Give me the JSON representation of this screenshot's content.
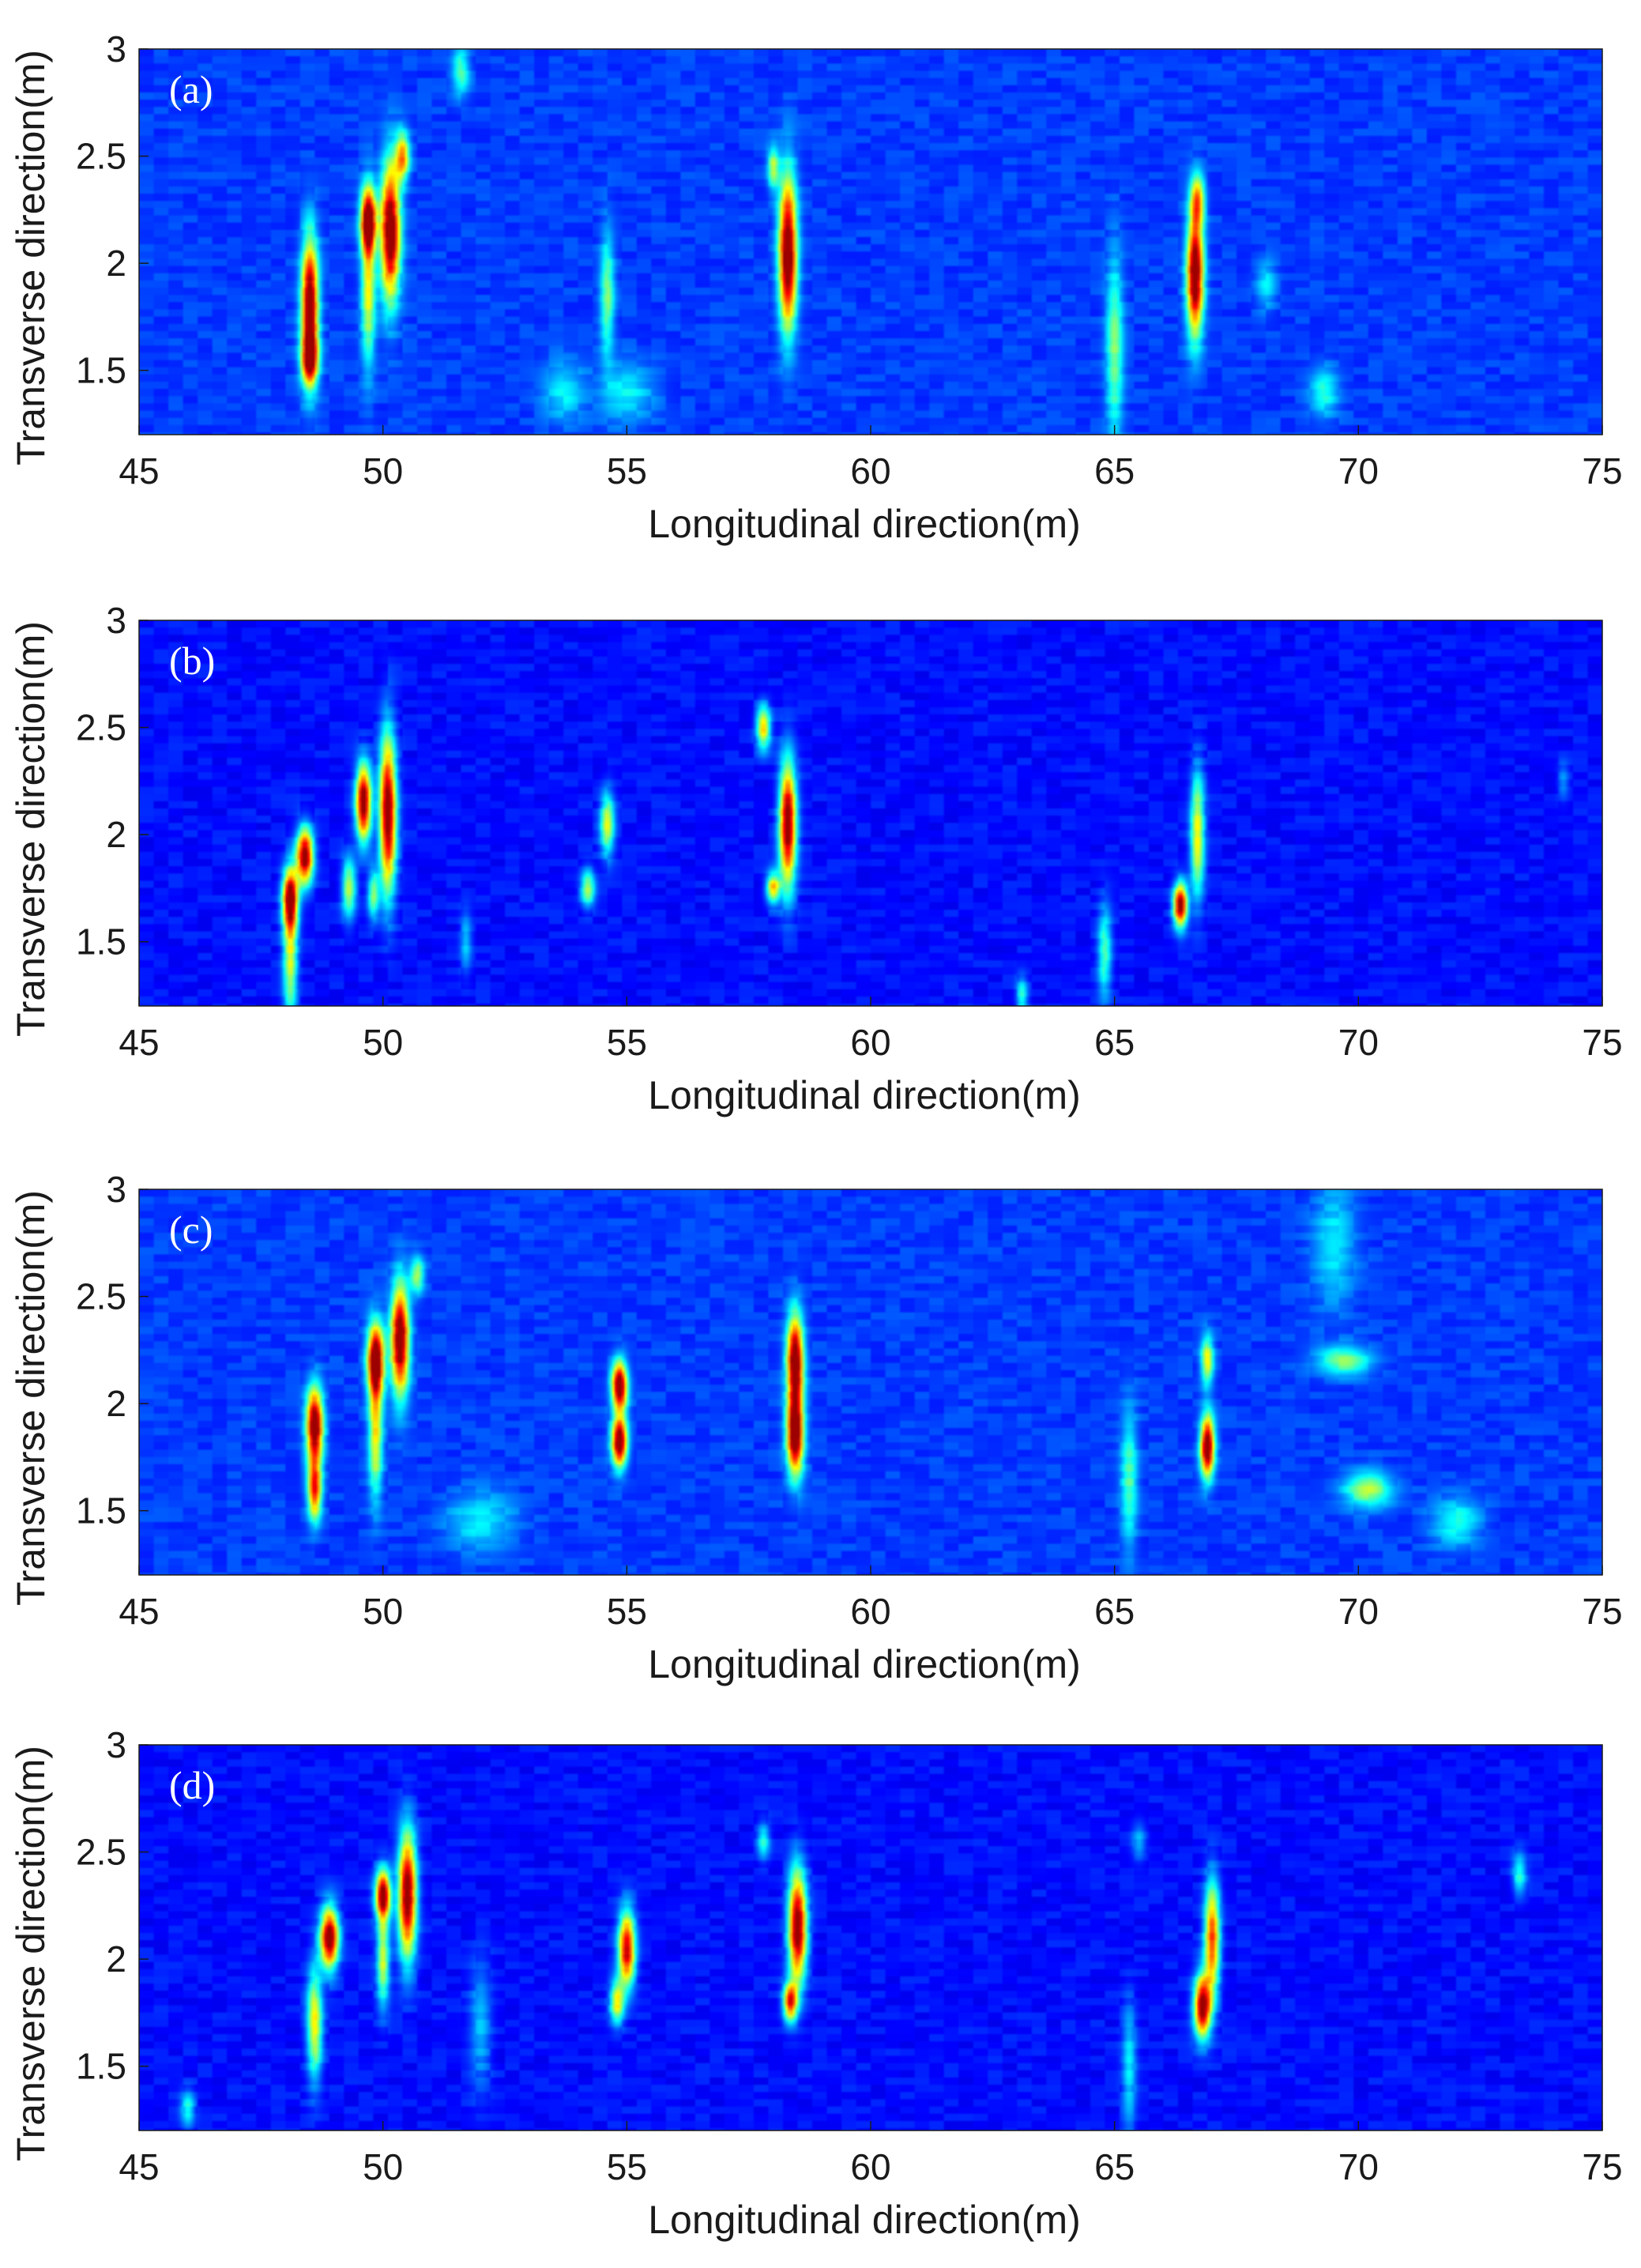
{
  "chart_data": [
    {
      "type": "heatmap",
      "label": "(a)",
      "xlabel": "Longitudinal direction(m)",
      "ylabel": "Transverse direction(m)",
      "xlim": [
        45,
        75
      ],
      "ylim": [
        1.2,
        3
      ],
      "xticks": [
        45,
        50,
        55,
        60,
        65,
        70,
        75
      ],
      "yticks": [
        1.5,
        2,
        2.5,
        3
      ],
      "colormap": "jet",
      "background_level": 0.1,
      "hotspots": [
        {
          "x": 48.5,
          "y": 1.8,
          "sx": 0.12,
          "sy": 0.22,
          "v": 1.0
        },
        {
          "x": 48.5,
          "y": 1.55,
          "sx": 0.12,
          "sy": 0.08,
          "v": 0.6
        },
        {
          "x": 49.7,
          "y": 2.2,
          "sx": 0.11,
          "sy": 0.1,
          "v": 0.95
        },
        {
          "x": 49.7,
          "y": 1.9,
          "sx": 0.1,
          "sy": 0.25,
          "v": 0.5
        },
        {
          "x": 50.15,
          "y": 2.15,
          "sx": 0.14,
          "sy": 0.22,
          "v": 1.0
        },
        {
          "x": 50.4,
          "y": 2.5,
          "sx": 0.1,
          "sy": 0.08,
          "v": 0.6
        },
        {
          "x": 54.6,
          "y": 1.85,
          "sx": 0.1,
          "sy": 0.2,
          "v": 0.35
        },
        {
          "x": 58.3,
          "y": 2.05,
          "sx": 0.13,
          "sy": 0.25,
          "v": 1.0
        },
        {
          "x": 58.0,
          "y": 2.45,
          "sx": 0.08,
          "sy": 0.07,
          "v": 0.4
        },
        {
          "x": 65.0,
          "y": 1.6,
          "sx": 0.12,
          "sy": 0.3,
          "v": 0.35
        },
        {
          "x": 66.65,
          "y": 1.95,
          "sx": 0.12,
          "sy": 0.2,
          "v": 1.0
        },
        {
          "x": 66.7,
          "y": 2.3,
          "sx": 0.1,
          "sy": 0.08,
          "v": 0.5
        },
        {
          "x": 69.3,
          "y": 1.4,
          "sx": 0.2,
          "sy": 0.08,
          "v": 0.25
        },
        {
          "x": 68.1,
          "y": 1.9,
          "sx": 0.15,
          "sy": 0.08,
          "v": 0.2
        },
        {
          "x": 53.7,
          "y": 1.4,
          "sx": 0.3,
          "sy": 0.1,
          "v": 0.2
        },
        {
          "x": 55.0,
          "y": 1.4,
          "sx": 0.4,
          "sy": 0.1,
          "v": 0.2
        },
        {
          "x": 51.6,
          "y": 2.9,
          "sx": 0.12,
          "sy": 0.08,
          "v": 0.3
        }
      ]
    },
    {
      "type": "heatmap",
      "label": "(b)",
      "xlabel": "Longitudinal direction(m)",
      "ylabel": "Transverse direction(m)",
      "xlim": [
        45,
        75
      ],
      "ylim": [
        1.2,
        3
      ],
      "xticks": [
        45,
        50,
        55,
        60,
        65,
        70,
        75
      ],
      "yticks": [
        1.5,
        2,
        2.5,
        3
      ],
      "colormap": "jet",
      "background_level": 0.05,
      "hotspots": [
        {
          "x": 48.1,
          "y": 1.7,
          "sx": 0.11,
          "sy": 0.1,
          "v": 1.0
        },
        {
          "x": 48.1,
          "y": 1.4,
          "sx": 0.1,
          "sy": 0.18,
          "v": 0.5
        },
        {
          "x": 48.4,
          "y": 1.9,
          "sx": 0.12,
          "sy": 0.09,
          "v": 1.0
        },
        {
          "x": 49.6,
          "y": 2.15,
          "sx": 0.11,
          "sy": 0.12,
          "v": 1.0
        },
        {
          "x": 49.3,
          "y": 1.75,
          "sx": 0.1,
          "sy": 0.1,
          "v": 0.45
        },
        {
          "x": 49.8,
          "y": 1.72,
          "sx": 0.08,
          "sy": 0.08,
          "v": 0.4
        },
        {
          "x": 50.1,
          "y": 2.1,
          "sx": 0.12,
          "sy": 0.25,
          "v": 1.0
        },
        {
          "x": 54.6,
          "y": 2.05,
          "sx": 0.1,
          "sy": 0.1,
          "v": 0.5
        },
        {
          "x": 54.2,
          "y": 1.75,
          "sx": 0.1,
          "sy": 0.06,
          "v": 0.45
        },
        {
          "x": 57.8,
          "y": 2.5,
          "sx": 0.1,
          "sy": 0.07,
          "v": 0.6
        },
        {
          "x": 58.3,
          "y": 2.05,
          "sx": 0.12,
          "sy": 0.2,
          "v": 1.0
        },
        {
          "x": 58.0,
          "y": 1.75,
          "sx": 0.1,
          "sy": 0.05,
          "v": 0.6
        },
        {
          "x": 64.8,
          "y": 1.45,
          "sx": 0.1,
          "sy": 0.15,
          "v": 0.35
        },
        {
          "x": 66.35,
          "y": 1.67,
          "sx": 0.1,
          "sy": 0.07,
          "v": 1.0
        },
        {
          "x": 66.7,
          "y": 2.0,
          "sx": 0.1,
          "sy": 0.2,
          "v": 0.55
        },
        {
          "x": 63.1,
          "y": 1.25,
          "sx": 0.08,
          "sy": 0.06,
          "v": 0.3
        },
        {
          "x": 51.7,
          "y": 1.5,
          "sx": 0.08,
          "sy": 0.1,
          "v": 0.2
        },
        {
          "x": 74.2,
          "y": 2.25,
          "sx": 0.08,
          "sy": 0.06,
          "v": 0.15
        }
      ]
    },
    {
      "type": "heatmap",
      "label": "(c)",
      "xlabel": "Longitudinal direction(m)",
      "ylabel": "Transverse direction(m)",
      "xlim": [
        45,
        75
      ],
      "ylim": [
        1.2,
        3
      ],
      "xticks": [
        45,
        50,
        55,
        60,
        65,
        70,
        75
      ],
      "yticks": [
        1.5,
        2,
        2.5,
        3
      ],
      "colormap": "jet",
      "background_level": 0.1,
      "hotspots": [
        {
          "x": 48.6,
          "y": 1.9,
          "sx": 0.12,
          "sy": 0.12,
          "v": 1.0
        },
        {
          "x": 48.6,
          "y": 1.6,
          "sx": 0.1,
          "sy": 0.1,
          "v": 0.75
        },
        {
          "x": 49.85,
          "y": 2.2,
          "sx": 0.12,
          "sy": 0.12,
          "v": 1.0
        },
        {
          "x": 49.85,
          "y": 1.85,
          "sx": 0.1,
          "sy": 0.2,
          "v": 0.5
        },
        {
          "x": 50.35,
          "y": 2.3,
          "sx": 0.13,
          "sy": 0.18,
          "v": 1.0
        },
        {
          "x": 50.7,
          "y": 2.6,
          "sx": 0.1,
          "sy": 0.06,
          "v": 0.4
        },
        {
          "x": 54.85,
          "y": 2.08,
          "sx": 0.11,
          "sy": 0.08,
          "v": 1.0
        },
        {
          "x": 54.85,
          "y": 1.82,
          "sx": 0.11,
          "sy": 0.08,
          "v": 1.0
        },
        {
          "x": 58.45,
          "y": 2.2,
          "sx": 0.12,
          "sy": 0.15,
          "v": 1.0
        },
        {
          "x": 58.45,
          "y": 1.85,
          "sx": 0.12,
          "sy": 0.13,
          "v": 1.0
        },
        {
          "x": 65.3,
          "y": 1.65,
          "sx": 0.12,
          "sy": 0.22,
          "v": 0.3
        },
        {
          "x": 66.9,
          "y": 1.8,
          "sx": 0.1,
          "sy": 0.1,
          "v": 1.0
        },
        {
          "x": 66.9,
          "y": 2.2,
          "sx": 0.09,
          "sy": 0.08,
          "v": 0.5
        },
        {
          "x": 69.7,
          "y": 2.2,
          "sx": 0.4,
          "sy": 0.05,
          "v": 0.35
        },
        {
          "x": 70.2,
          "y": 1.6,
          "sx": 0.35,
          "sy": 0.06,
          "v": 0.4
        },
        {
          "x": 72.0,
          "y": 1.45,
          "sx": 0.35,
          "sy": 0.08,
          "v": 0.25
        },
        {
          "x": 69.5,
          "y": 2.75,
          "sx": 0.3,
          "sy": 0.2,
          "v": 0.2
        },
        {
          "x": 52.0,
          "y": 1.45,
          "sx": 0.5,
          "sy": 0.1,
          "v": 0.2
        }
      ]
    },
    {
      "type": "heatmap",
      "label": "(d)",
      "xlabel": "Longitudinal direction(m)",
      "ylabel": "Transverse direction(m)",
      "xlim": [
        45,
        75
      ],
      "ylim": [
        1.2,
        3
      ],
      "xticks": [
        45,
        50,
        55,
        60,
        65,
        70,
        75
      ],
      "yticks": [
        1.5,
        2,
        2.5,
        3
      ],
      "colormap": "jet",
      "background_level": 0.05,
      "hotspots": [
        {
          "x": 48.9,
          "y": 2.1,
          "sx": 0.13,
          "sy": 0.1,
          "v": 1.0
        },
        {
          "x": 48.6,
          "y": 1.7,
          "sx": 0.11,
          "sy": 0.18,
          "v": 0.55
        },
        {
          "x": 50.0,
          "y": 2.3,
          "sx": 0.11,
          "sy": 0.08,
          "v": 1.0
        },
        {
          "x": 50.0,
          "y": 2.0,
          "sx": 0.09,
          "sy": 0.15,
          "v": 0.5
        },
        {
          "x": 50.5,
          "y": 2.3,
          "sx": 0.13,
          "sy": 0.2,
          "v": 1.0
        },
        {
          "x": 55.0,
          "y": 2.05,
          "sx": 0.12,
          "sy": 0.12,
          "v": 0.9
        },
        {
          "x": 54.8,
          "y": 1.8,
          "sx": 0.1,
          "sy": 0.07,
          "v": 0.55
        },
        {
          "x": 58.5,
          "y": 2.15,
          "sx": 0.13,
          "sy": 0.18,
          "v": 1.0
        },
        {
          "x": 58.35,
          "y": 1.8,
          "sx": 0.1,
          "sy": 0.06,
          "v": 0.8
        },
        {
          "x": 57.8,
          "y": 2.55,
          "sx": 0.09,
          "sy": 0.06,
          "v": 0.3
        },
        {
          "x": 66.8,
          "y": 1.78,
          "sx": 0.12,
          "sy": 0.1,
          "v": 1.0
        },
        {
          "x": 67.0,
          "y": 2.1,
          "sx": 0.11,
          "sy": 0.18,
          "v": 0.75
        },
        {
          "x": 65.3,
          "y": 1.5,
          "sx": 0.1,
          "sy": 0.2,
          "v": 0.25
        },
        {
          "x": 73.3,
          "y": 2.4,
          "sx": 0.1,
          "sy": 0.07,
          "v": 0.3
        },
        {
          "x": 46.0,
          "y": 1.3,
          "sx": 0.1,
          "sy": 0.06,
          "v": 0.3
        },
        {
          "x": 52.0,
          "y": 1.7,
          "sx": 0.15,
          "sy": 0.2,
          "v": 0.2
        },
        {
          "x": 65.5,
          "y": 2.55,
          "sx": 0.1,
          "sy": 0.06,
          "v": 0.2
        }
      ]
    }
  ]
}
